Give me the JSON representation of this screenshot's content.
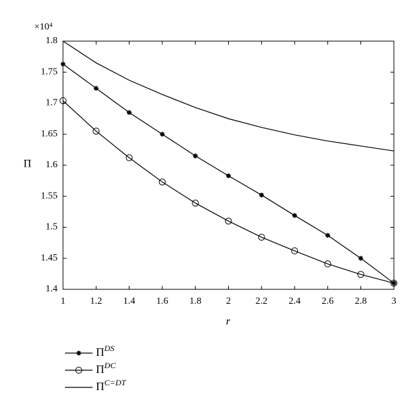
{
  "chart_data": {
    "type": "line",
    "x_label": "r",
    "y_label": "Π",
    "y_multiplier": "×10⁴",
    "x": [
      1,
      1.2,
      1.4,
      1.6,
      1.8,
      2,
      2.2,
      2.4,
      2.6,
      2.8,
      3
    ],
    "series": [
      {
        "name": "ΠDS",
        "color": "#000000",
        "marker": "star",
        "values": [
          1.763,
          1.724,
          1.685,
          1.65,
          1.615,
          1.583,
          1.552,
          1.519,
          1.487,
          1.45,
          1.41
        ]
      },
      {
        "name": "ΠDC",
        "color": "#000000",
        "marker": "circle",
        "values": [
          1.704,
          1.655,
          1.612,
          1.573,
          1.539,
          1.51,
          1.484,
          1.462,
          1.441,
          1.424,
          1.41
        ]
      },
      {
        "name": "ΠC=DT",
        "color": "#000000",
        "marker": "none",
        "values": [
          1.8,
          1.765,
          1.737,
          1.714,
          1.693,
          1.675,
          1.661,
          1.649,
          1.639,
          1.631,
          1.623
        ]
      }
    ],
    "xlim": [
      1,
      3
    ],
    "xticks": [
      1,
      1.2,
      1.4,
      1.6,
      1.8,
      2,
      2.2,
      2.4,
      2.6,
      2.8,
      3
    ],
    "ylim": [
      1.4,
      1.8
    ],
    "yticks": [
      1.4,
      1.45,
      1.5,
      1.55,
      1.6,
      1.65,
      1.7,
      1.75,
      1.8
    ],
    "grid": false,
    "legend": "bottom-left"
  }
}
